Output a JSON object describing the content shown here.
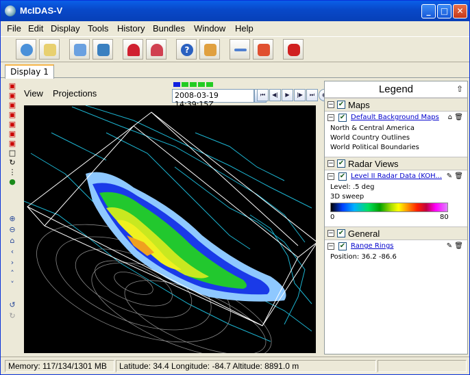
{
  "window": {
    "title": "McIDAS-V",
    "minimize_icon": "minimize-icon",
    "maximize_icon": "maximize-icon",
    "close_icon": "close-icon"
  },
  "menubar": {
    "items": [
      {
        "label": "File"
      },
      {
        "label": "Edit"
      },
      {
        "label": "Display"
      },
      {
        "label": "Tools"
      },
      {
        "label": "History"
      },
      {
        "label": "Bundles"
      },
      {
        "label": "Window"
      },
      {
        "label": "Help"
      }
    ]
  },
  "toolbar": {
    "tools": [
      {
        "icon": "data-explorer-icon",
        "color": "#4a90d9"
      },
      {
        "icon": "new-display-icon",
        "color": "#e8d070"
      },
      {
        "icon": "open-bundle-icon",
        "color": "#6aa0e0"
      },
      {
        "icon": "save-bundle-icon",
        "color": "#3a80c0"
      },
      {
        "icon": "favorite-bundle-icon",
        "color": "#d02030"
      },
      {
        "icon": "manage-favorites-icon",
        "color": "#d04050"
      },
      {
        "icon": "help-icon",
        "color": "#2a60c0"
      },
      {
        "icon": "user-guide-icon",
        "color": "#e0a040"
      },
      {
        "icon": "remove-displays-icon",
        "color": "#5080d0"
      },
      {
        "icon": "clear-data-icon",
        "color": "#e05030"
      },
      {
        "icon": "stop-loading-icon",
        "color": "#d02020"
      }
    ]
  },
  "tabs": [
    {
      "label": "Display 1"
    }
  ],
  "view": {
    "menu_view": "View",
    "menu_projections": "Projections",
    "time": "2008-03-19 14:39:15Z"
  },
  "legend": {
    "title": "Legend",
    "sections": [
      {
        "label": "Maps",
        "item": {
          "link": "Default Background Maps"
        },
        "details": [
          "North & Central America",
          "World Country Outlines",
          "World Political Boundaries"
        ]
      },
      {
        "label": "Radar Views",
        "item": {
          "link": "Level II Radar Data (KOH..."
        },
        "details": [
          "Level: .5 deg",
          "3D sweep"
        ],
        "colorbar": {
          "min": "0",
          "max": "80"
        }
      },
      {
        "label": "General",
        "item": {
          "link": "Range Rings"
        },
        "details": [
          "Position: 36.2 -86.6"
        ]
      }
    ]
  },
  "status": {
    "memory": "Memory: 117/134/1301 MB",
    "location": "Latitude:   34.4 Longitude:  -84.7 Altitude: 8891.0 m"
  }
}
